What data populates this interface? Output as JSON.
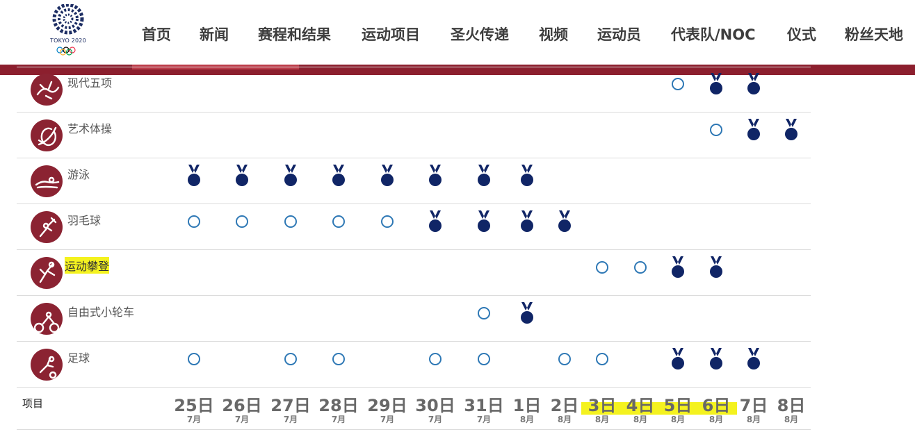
{
  "logo": {
    "text": "TOKYO 2020",
    "icon": "tokyo-2020-emblem"
  },
  "nav": [
    "首页",
    "新闻",
    "赛程和结果",
    "运动项目",
    "圣火传递",
    "视频",
    "运动员",
    "代表队/NOC",
    "仪式",
    "粉丝天地"
  ],
  "colors": {
    "brand": "#8c1f2e",
    "medal": "#102566",
    "open": "#2e78b5",
    "highlight": "#f4f21f"
  },
  "sports": [
    {
      "name": "现代五项",
      "icon": "modern-pentathlon-icon",
      "open": [],
      "medal": [],
      "open_days": [
        "5日"
      ],
      "medal_days": [
        "6日",
        "7日"
      ],
      "highlighted": false
    },
    {
      "name": "艺术体操",
      "icon": "rhythmic-gymnastics-icon",
      "open_days": [
        "6日"
      ],
      "medal_days": [
        "7日",
        "8日"
      ],
      "highlighted": false
    },
    {
      "name": "游泳",
      "icon": "swimming-icon",
      "open_days": [],
      "medal_days": [
        "25日",
        "26日",
        "27日",
        "28日",
        "29日",
        "30日",
        "31日",
        "1日"
      ],
      "highlighted": false
    },
    {
      "name": "羽毛球",
      "icon": "badminton-icon",
      "open_days": [
        "25日",
        "26日",
        "27日",
        "28日",
        "29日"
      ],
      "medal_days": [
        "30日",
        "31日",
        "1日",
        "2日"
      ],
      "highlighted": false
    },
    {
      "name": "运动攀登",
      "icon": "sport-climbing-icon",
      "open_days": [
        "3日",
        "4日"
      ],
      "medal_days": [
        "5日",
        "6日"
      ],
      "highlighted": true
    },
    {
      "name": "自由式小轮车",
      "icon": "bmx-freestyle-icon",
      "open_days": [
        "31日"
      ],
      "medal_days": [
        "1日"
      ],
      "highlighted": false
    },
    {
      "name": "足球",
      "icon": "football-icon",
      "open_days": [
        "25日",
        "27日",
        "28日",
        "30日",
        "31日",
        "2日",
        "3日"
      ],
      "medal_days": [
        "5日",
        "6日",
        "7日"
      ],
      "highlighted": false
    }
  ],
  "footer": {
    "label": "项目",
    "dates": [
      {
        "day": "25日",
        "month": "7月",
        "highlighted": false
      },
      {
        "day": "26日",
        "month": "7月",
        "highlighted": false
      },
      {
        "day": "27日",
        "month": "7月",
        "highlighted": false
      },
      {
        "day": "28日",
        "month": "7月",
        "highlighted": false
      },
      {
        "day": "29日",
        "month": "7月",
        "highlighted": false
      },
      {
        "day": "30日",
        "month": "7月",
        "highlighted": false
      },
      {
        "day": "31日",
        "month": "7月",
        "highlighted": false
      },
      {
        "day": "1日",
        "month": "8月",
        "highlighted": false
      },
      {
        "day": "2日",
        "month": "8月",
        "highlighted": false
      },
      {
        "day": "3日",
        "month": "8月",
        "highlighted": true
      },
      {
        "day": "4日",
        "month": "8月",
        "highlighted": true
      },
      {
        "day": "5日",
        "month": "8月",
        "highlighted": true
      },
      {
        "day": "6日",
        "month": "8月",
        "highlighted": true
      },
      {
        "day": "7日",
        "month": "8月",
        "highlighted": false
      },
      {
        "day": "8日",
        "month": "8月",
        "highlighted": false
      }
    ]
  }
}
